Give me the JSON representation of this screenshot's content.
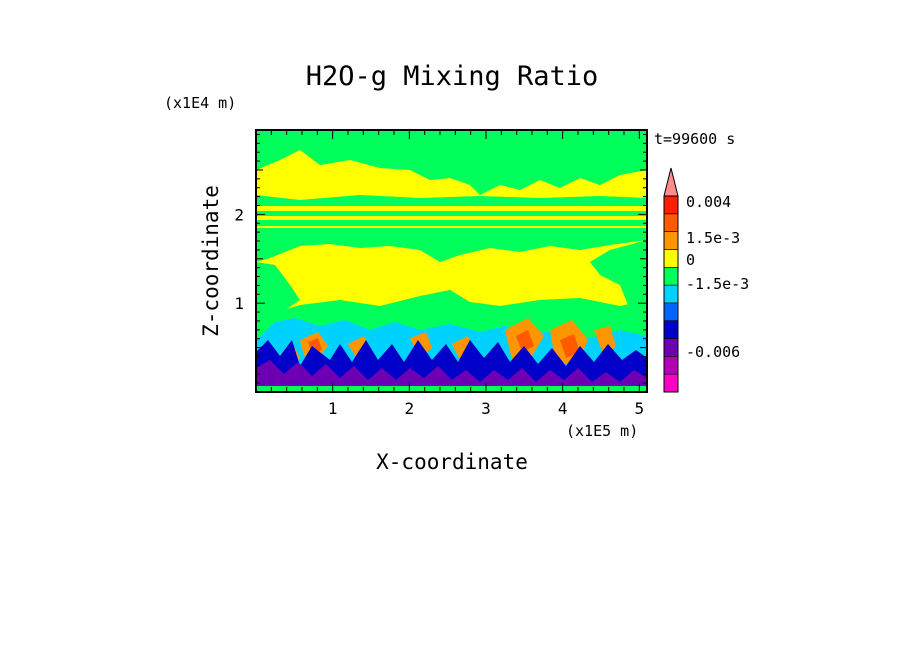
{
  "chart_data": {
    "type": "heatmap",
    "title": "H2O-g Mixing Ratio",
    "xlabel": "X-coordinate",
    "ylabel": "Z-coordinate",
    "x_scale_label": "(x1E5 m)",
    "y_scale_label": "(x1E4 m)",
    "time_label": "t=99600 s",
    "xlim": [
      0,
      5.1
    ],
    "ylim": [
      0,
      2.95
    ],
    "x_ticks": [
      1,
      2,
      3,
      4,
      5
    ],
    "y_ticks": [
      1,
      2
    ],
    "colorbar": {
      "colors": [
        "#ff00c8",
        "#b400b4",
        "#6e00b4",
        "#0000c8",
        "#0064ff",
        "#00d2ff",
        "#00ff5a",
        "#ffff00",
        "#ff9600",
        "#ff5a00",
        "#ff1e00",
        "#ff8c8c"
      ],
      "labels": [
        "0.004",
        "1.5e-3",
        "0",
        "-1.5e-3",
        "-0.006"
      ]
    },
    "layers": [
      {
        "level": "dark-blue/purple",
        "z_range": [
          0,
          0.5
        ],
        "note": "near-surface negative anomalies"
      },
      {
        "level": "cyan/blue",
        "z_range": [
          0.4,
          1.0
        ]
      },
      {
        "level": "orange/red plumes",
        "x": [
          0.4,
          4.3
        ],
        "z_range": [
          0.3,
          0.8
        ]
      },
      {
        "level": "yellow",
        "z_range": [
          0.9,
          2.8
        ]
      },
      {
        "level": "green",
        "z_range": [
          0.5,
          2.95
        ]
      }
    ]
  }
}
